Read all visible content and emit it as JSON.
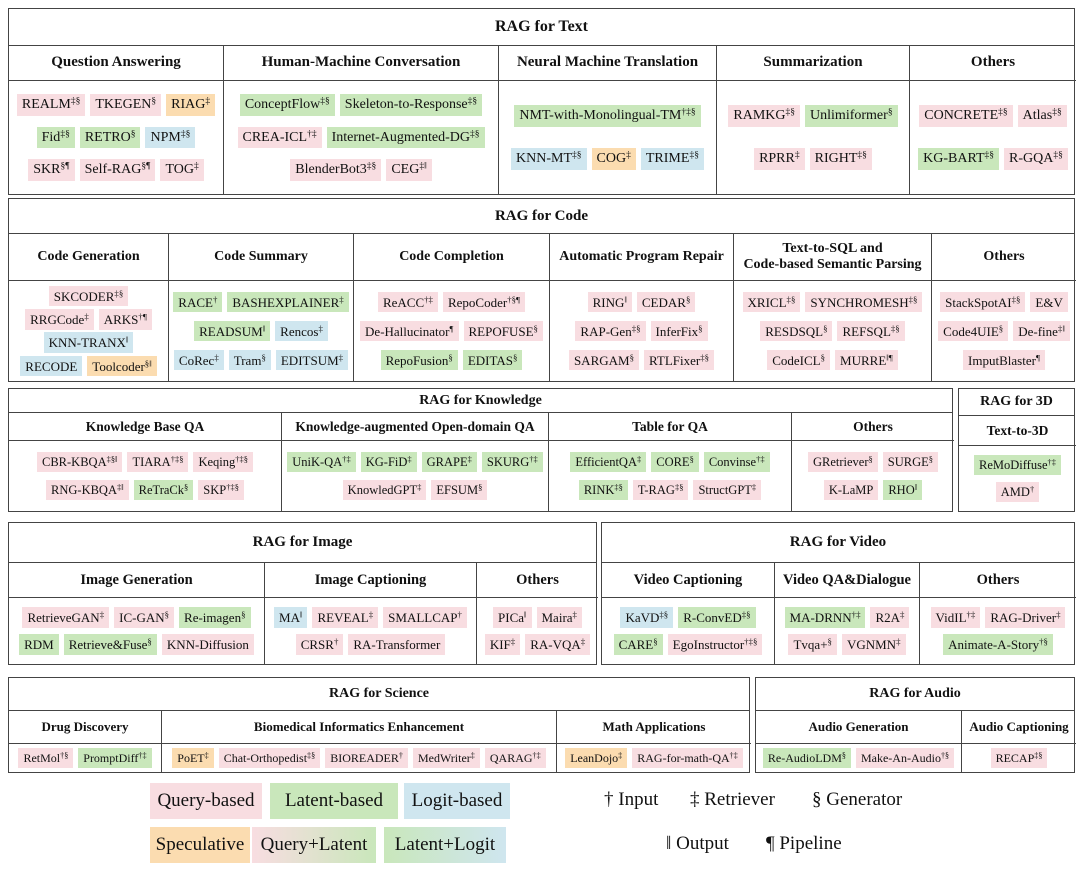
{
  "sections": [
    {
      "title": "RAG for Text",
      "columns": [
        {
          "title": "Question Answering",
          "items": [
            {
              "name": "REALM",
              "sup": "‡§",
              "color": "#f8dde1"
            },
            {
              "name": "TKEGEN",
              "sup": "§",
              "color": "#f8dde1"
            },
            {
              "name": "RIAG",
              "sup": "‡",
              "color": "#fbdcb0"
            },
            {
              "name": "Fid",
              "sup": "‡§",
              "color": "#c9e7bb"
            },
            {
              "name": "RETRO",
              "sup": "§",
              "color": "#c9e7bb"
            },
            {
              "name": "NPM",
              "sup": "‡§",
              "color": "#cfe6ef"
            },
            {
              "name": "SKR",
              "sup": "§¶",
              "color": "#f8dde1"
            },
            {
              "name": "Self-RAG",
              "sup": "§¶",
              "color": "#f8dde1"
            },
            {
              "name": "TOG",
              "sup": "‡",
              "color": "#f8dde1"
            }
          ]
        },
        {
          "title": "Human-Machine Conversation",
          "items": [
            {
              "name": "ConceptFlow",
              "sup": "‡§",
              "color": "#c9e7bb"
            },
            {
              "name": "Skeleton-to-Response",
              "sup": "‡§",
              "color": "#c9e7bb"
            },
            {
              "name": "CREA-ICL",
              "sup": "†‡",
              "color": "#f8dde1"
            },
            {
              "name": "Internet-Augmented-DG",
              "sup": "‡§",
              "color": "#c9e7bb"
            },
            {
              "name": "BlenderBot3",
              "sup": "‡§",
              "color": "#f8dde1"
            },
            {
              "name": "CEG",
              "sup": "‡‖",
              "color": "#f8dde1"
            }
          ]
        },
        {
          "title": "Neural Machine Translation",
          "items": [
            {
              "name": "NMT-with-Monolingual-TM",
              "sup": "†‡§",
              "color": "#c9e7bb"
            },
            {
              "name": "KNN-MT",
              "sup": "‡§",
              "color": "#cfe6ef"
            },
            {
              "name": "COG",
              "sup": "‡",
              "color": "#fbdcb0"
            },
            {
              "name": "TRIME",
              "sup": "‡§",
              "color": "#cfe6ef"
            }
          ]
        },
        {
          "title": "Summarization",
          "items": [
            {
              "name": "RAMKG",
              "sup": "‡§",
              "color": "#f8dde1"
            },
            {
              "name": "Unlimiformer",
              "sup": "§",
              "color": "#c9e7bb"
            },
            {
              "name": "RPRR",
              "sup": "‡",
              "color": "#f8dde1"
            },
            {
              "name": "RIGHT",
              "sup": "‡§",
              "color": "#f8dde1"
            }
          ]
        },
        {
          "title": "Others",
          "items": [
            {
              "name": "CONCRETE",
              "sup": "‡§",
              "color": "#f8dde1"
            },
            {
              "name": "Atlas",
              "sup": "‡§",
              "color": "#f8dde1"
            },
            {
              "name": "KG-BART",
              "sup": "‡§",
              "color": "#c9e7bb"
            },
            {
              "name": "R-GQA",
              "sup": "‡§",
              "color": "#f8dde1"
            }
          ]
        }
      ]
    },
    {
      "title": "RAG for Code",
      "columns": [
        {
          "title": "Code Generation",
          "items": [
            {
              "name": "SKCODER",
              "sup": "‡§",
              "color": "#f8dde1"
            },
            {
              "name": "RRGCode",
              "sup": "‡",
              "color": "#f8dde1"
            },
            {
              "name": "ARKS",
              "sup": "†¶",
              "color": "#f8dde1"
            },
            {
              "name": "KNN-TRANX",
              "sup": "‖",
              "color": "#cfe6ef"
            },
            {
              "name": "RECODE",
              "color": "#cfe6ef"
            },
            {
              "name": "Toolcoder",
              "sup": "§‖",
              "color": "#fbdcb0"
            }
          ]
        },
        {
          "title": "Code Summary",
          "items": [
            {
              "name": "RACE",
              "sup": "†",
              "color": "#c9e7bb"
            },
            {
              "name": "BASHEXPLAINER",
              "sup": "‡",
              "color": "#c9e7bb"
            },
            {
              "name": "READSUM",
              "sup": "‖",
              "color": "#c9e7bb"
            },
            {
              "name": "Rencos",
              "sup": "‡",
              "color": "#cfe6ef"
            },
            {
              "name": "CoRec",
              "sup": "‡",
              "color": "#cfe6ef"
            },
            {
              "name": "Tram",
              "sup": "§",
              "color": "#cfe6ef"
            },
            {
              "name": "EDITSUM",
              "sup": "‡",
              "color": "#cfe6ef"
            }
          ]
        },
        {
          "title": "Code Completion",
          "items": [
            {
              "name": "ReACC",
              "sup": "†‡",
              "color": "#f8dde1"
            },
            {
              "name": "RepoCoder",
              "sup": "†§¶",
              "color": "#f8dde1"
            },
            {
              "name": "De-Hallucinator",
              "sup": "¶",
              "color": "#f8dde1"
            },
            {
              "name": "REPOFUSE",
              "sup": "§",
              "color": "#f8dde1"
            },
            {
              "name": "RepoFusion",
              "sup": "§",
              "color": "#c9e7bb"
            },
            {
              "name": "EDITAS",
              "sup": "§",
              "color": "#c9e7bb"
            }
          ]
        },
        {
          "title": "Automatic Program Repair",
          "items": [
            {
              "name": "RING",
              "sup": "‖",
              "color": "#f8dde1"
            },
            {
              "name": "CEDAR",
              "sup": "§",
              "color": "#f8dde1"
            },
            {
              "name": "RAP-Gen",
              "sup": "‡§",
              "color": "#f8dde1"
            },
            {
              "name": "InferFix",
              "sup": "§",
              "color": "#f8dde1"
            },
            {
              "name": "SARGAM",
              "sup": "§",
              "color": "#f8dde1"
            },
            {
              "name": "RTLFixer",
              "sup": "‡§",
              "color": "#f8dde1"
            }
          ]
        },
        {
          "title": "Text-to-SQL and\nCode-based Semantic Parsing",
          "items": [
            {
              "name": "XRICL",
              "sup": "‡§",
              "color": "#f8dde1"
            },
            {
              "name": "SYNCHROMESH",
              "sup": "‡§",
              "color": "#f8dde1"
            },
            {
              "name": "RESDSQL",
              "sup": "§",
              "color": "#f8dde1"
            },
            {
              "name": "REFSQL",
              "sup": "‡§",
              "color": "#f8dde1"
            },
            {
              "name": "CodeICL",
              "sup": "§",
              "color": "#f8dde1"
            },
            {
              "name": "MURRE",
              "sup": "‖¶",
              "color": "#f8dde1"
            }
          ]
        },
        {
          "title": "Others",
          "items": [
            {
              "name": "StackSpotAI",
              "sup": "‡§",
              "color": "#f8dde1"
            },
            {
              "name": "E&V",
              "color": "#f8dde1"
            },
            {
              "name": "Code4UIE",
              "sup": "§",
              "color": "#f8dde1"
            },
            {
              "name": "De-fine",
              "sup": "‡‖",
              "color": "#f8dde1"
            },
            {
              "name": "ImputBlaster",
              "sup": "¶",
              "color": "#f8dde1"
            }
          ]
        }
      ]
    },
    {
      "title": "RAG for Knowledge",
      "columns": [
        {
          "title": "Knowledge Base QA",
          "items": [
            {
              "name": "CBR-KBQA",
              "sup": "‡§‖",
              "color": "#f8dde1"
            },
            {
              "name": "TIARA",
              "sup": "†‡§",
              "color": "#f8dde1"
            },
            {
              "name": "Keqing",
              "sup": "†‡§",
              "color": "#f8dde1"
            },
            {
              "name": "RNG-KBQA",
              "sup": "‡‖",
              "color": "#f8dde1"
            },
            {
              "name": "ReTraCk",
              "sup": "§",
              "color": "#c9e7bb"
            },
            {
              "name": "SKP",
              "sup": "†‡§",
              "color": "#f8dde1"
            }
          ]
        },
        {
          "title": "Knowledge-augmented Open-domain QA",
          "items": [
            {
              "name": "UniK-QA",
              "sup": "†‡",
              "color": "#c9e7bb"
            },
            {
              "name": "KG-FiD",
              "sup": "‡",
              "color": "#c9e7bb"
            },
            {
              "name": "GRAPE",
              "sup": "‡",
              "color": "#c9e7bb"
            },
            {
              "name": "SKURG",
              "sup": "†‡",
              "color": "#c9e7bb"
            },
            {
              "name": "KnowledGPT",
              "sup": "‡",
              "color": "#f8dde1"
            },
            {
              "name": "EFSUM",
              "sup": "§",
              "color": "#f8dde1"
            }
          ]
        },
        {
          "title": "Table for QA",
          "items": [
            {
              "name": "EfficientQA",
              "sup": "‡",
              "color": "#c9e7bb"
            },
            {
              "name": "CORE",
              "sup": "§",
              "color": "#c9e7bb"
            },
            {
              "name": "Convinse",
              "sup": "†‡",
              "color": "#c9e7bb"
            },
            {
              "name": "RINK",
              "sup": "‡§",
              "color": "#c9e7bb"
            },
            {
              "name": "T-RAG",
              "sup": "‡§",
              "color": "#f8dde1"
            },
            {
              "name": "StructGPT",
              "sup": "‡",
              "color": "#f8dde1"
            }
          ]
        },
        {
          "title": "Others",
          "items": [
            {
              "name": "GRetriever",
              "sup": "§",
              "color": "#f8dde1"
            },
            {
              "name": "SURGE",
              "sup": "§",
              "color": "#f8dde1"
            },
            {
              "name": "K-LaMP",
              "color": "#f8dde1"
            },
            {
              "name": "RHO",
              "sup": "‖",
              "color": "#c9e7bb"
            }
          ]
        }
      ]
    },
    {
      "title": "RAG for 3D",
      "columns": [
        {
          "title": "Text-to-3D",
          "items": [
            {
              "name": "ReMoDiffuse",
              "sup": "†‡",
              "color": "#c9e7bb"
            },
            {
              "name": "AMD",
              "sup": "†",
              "color": "#f8dde1"
            }
          ]
        }
      ]
    },
    {
      "title": "RAG for Image",
      "columns": [
        {
          "title": "Image Generation",
          "items": [
            {
              "name": "RetrieveGAN",
              "sup": "‡",
              "color": "#f8dde1"
            },
            {
              "name": "IC-GAN",
              "sup": "§",
              "color": "#f8dde1"
            },
            {
              "name": "Re-imagen",
              "sup": "§",
              "color": "#c9e7bb"
            },
            {
              "name": "RDM",
              "color": "#c9e7bb"
            },
            {
              "name": "Retrieve&Fuse",
              "sup": "§",
              "color": "#c9e7bb"
            },
            {
              "name": "KNN-Diffusion",
              "color": "#f8dde1"
            }
          ]
        },
        {
          "title": "Image Captioning",
          "items": [
            {
              "name": "MA",
              "sup": "‖",
              "color": "#cfe6ef"
            },
            {
              "name": "REVEAL",
              "sup": "‡",
              "color": "#f8dde1"
            },
            {
              "name": "SMALLCAP",
              "sup": "†",
              "color": "#f8dde1"
            },
            {
              "name": "CRSR",
              "sup": "†",
              "color": "#f8dde1"
            },
            {
              "name": "RA-Transformer",
              "color": "#f8dde1"
            }
          ]
        },
        {
          "title": "Others",
          "items": [
            {
              "name": "PICa",
              "sup": "‖",
              "color": "#f8dde1"
            },
            {
              "name": "Maira",
              "sup": "‡",
              "color": "#f8dde1"
            },
            {
              "name": "KIF",
              "sup": "‡",
              "color": "#f8dde1"
            },
            {
              "name": "RA-VQA",
              "sup": "‡",
              "color": "#f8dde1"
            }
          ]
        }
      ]
    },
    {
      "title": "RAG for Video",
      "columns": [
        {
          "title": "Video Captioning",
          "items": [
            {
              "name": "KaVD",
              "sup": "‡§",
              "color": "#cfe6ef"
            },
            {
              "name": "R-ConvED",
              "sup": "‡§",
              "color": "#c9e7bb"
            },
            {
              "name": "CARE",
              "sup": "§",
              "color": "#c9e7bb"
            },
            {
              "name": "EgoInstructor",
              "sup": "†‡§",
              "color": "#f8dde1"
            }
          ]
        },
        {
          "title": "Video QA&Dialogue",
          "items": [
            {
              "name": "MA-DRNN",
              "sup": "†‡",
              "color": "#c9e7bb"
            },
            {
              "name": "R2A",
              "sup": "‡",
              "color": "#f8dde1"
            },
            {
              "name": "Tvqa+",
              "sup": "§",
              "color": "#f8dde1"
            },
            {
              "name": "VGNMN",
              "sup": "‡",
              "color": "#f8dde1"
            }
          ]
        },
        {
          "title": "Others",
          "items": [
            {
              "name": "VidIL",
              "sup": "†‡",
              "color": "#f8dde1"
            },
            {
              "name": "RAG-Driver",
              "sup": "‡",
              "color": "#f8dde1"
            },
            {
              "name": "Animate-A-Story",
              "sup": "†§",
              "color": "#c9e7bb"
            }
          ]
        }
      ]
    },
    {
      "title": "RAG for Science",
      "columns": [
        {
          "title": "Drug Discovery",
          "items": [
            {
              "name": "RetMol",
              "sup": "†§",
              "color": "#f8dde1"
            },
            {
              "name": "PromptDiff",
              "sup": "†‡",
              "color": "#c9e7bb"
            }
          ]
        },
        {
          "title": "Biomedical Informatics Enhancement",
          "items": [
            {
              "name": "PoET",
              "sup": "‡",
              "color": "#fbdcb0"
            },
            {
              "name": "Chat-Orthopedist",
              "sup": "‡§",
              "color": "#f8dde1"
            },
            {
              "name": "BIOREADER",
              "sup": "†",
              "color": "#f8dde1"
            },
            {
              "name": "MedWriter",
              "sup": "‡",
              "color": "#f8dde1"
            },
            {
              "name": "QARAG",
              "sup": "†‡",
              "color": "#f8dde1"
            }
          ]
        },
        {
          "title": "Math Applications",
          "items": [
            {
              "name": "LeanDojo",
              "sup": "‡",
              "color": "#fbdcb0"
            },
            {
              "name": "RAG-for-math-QA",
              "sup": "†‡",
              "color": "#f8dde1"
            }
          ]
        }
      ]
    },
    {
      "title": "RAG for Audio",
      "columns": [
        {
          "title": "Audio Generation",
          "items": [
            {
              "name": "Re-AudioLDM",
              "sup": "§",
              "color": "#c9e7bb"
            },
            {
              "name": "Make-An-Audio",
              "sup": "†§",
              "color": "#f8dde1"
            }
          ]
        },
        {
          "title": "Audio Captioning",
          "items": [
            {
              "name": "RECAP",
              "sup": "‡§",
              "color": "#f8dde1"
            }
          ]
        }
      ]
    }
  ],
  "legend": {
    "styles": [
      {
        "label": "Query-based",
        "colors": [
          "#f8dde1"
        ]
      },
      {
        "label": "Latent-based",
        "colors": [
          "#c9e7bb"
        ]
      },
      {
        "label": "Logit-based",
        "colors": [
          "#cfe6ef"
        ]
      },
      {
        "label": "Speculative",
        "colors": [
          "#fbdcb0"
        ]
      },
      {
        "label": "Query+Latent",
        "colors": [
          "#f8dde1",
          "#c9e7bb"
        ]
      },
      {
        "label": "Latent+Logit",
        "colors": [
          "#c9e7bb",
          "#cfe6ef"
        ]
      }
    ],
    "marks": [
      {
        "symbol": "†",
        "label": "Input"
      },
      {
        "symbol": "‡",
        "label": "Retriever"
      },
      {
        "symbol": "§",
        "label": "Generator"
      },
      {
        "symbol": "‖",
        "label": "Output"
      },
      {
        "symbol": "¶",
        "label": "Pipeline"
      }
    ]
  }
}
